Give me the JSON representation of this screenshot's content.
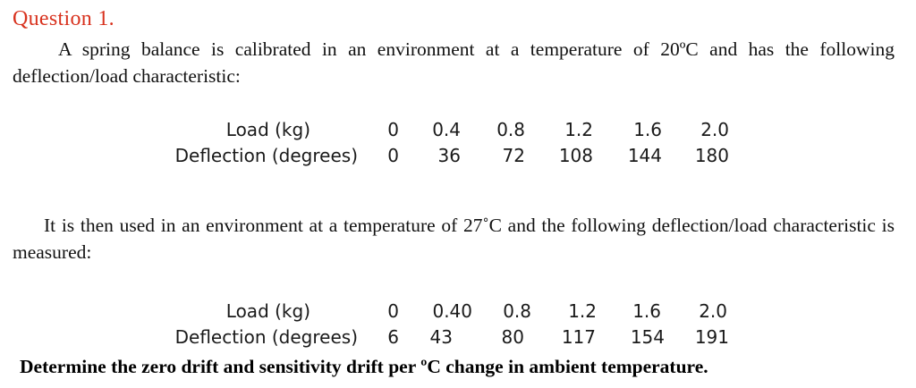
{
  "heading": "Question 1.",
  "paragraph1": "A spring balance is calibrated in an environment at a temperature of 20ºC and has the following deflection/load characteristic:",
  "table1": {
    "load_label": "Load (kg)",
    "deflection_label": "Deflection (degrees)",
    "load": [
      "0",
      "0.4",
      "0.8",
      "1.2",
      "1.6",
      "2.0"
    ],
    "deflection": [
      "0",
      "36",
      "72",
      "108",
      "144",
      "180"
    ]
  },
  "paragraph2": "It is then used in an environment at a temperature of 27˚C and the following deflection/load characteristic is measured:",
  "table2": {
    "load_label": "Load (kg)",
    "deflection_label": "Deflection (degrees)",
    "load": [
      "0",
      "0.40",
      "0.8",
      "1.2",
      "1.6",
      "2.0"
    ],
    "deflection": [
      "6",
      "43",
      "80",
      "117",
      "154",
      "191"
    ]
  },
  "question": "Determine the zero drift and sensitivity drift per ºC change in ambient temperature."
}
